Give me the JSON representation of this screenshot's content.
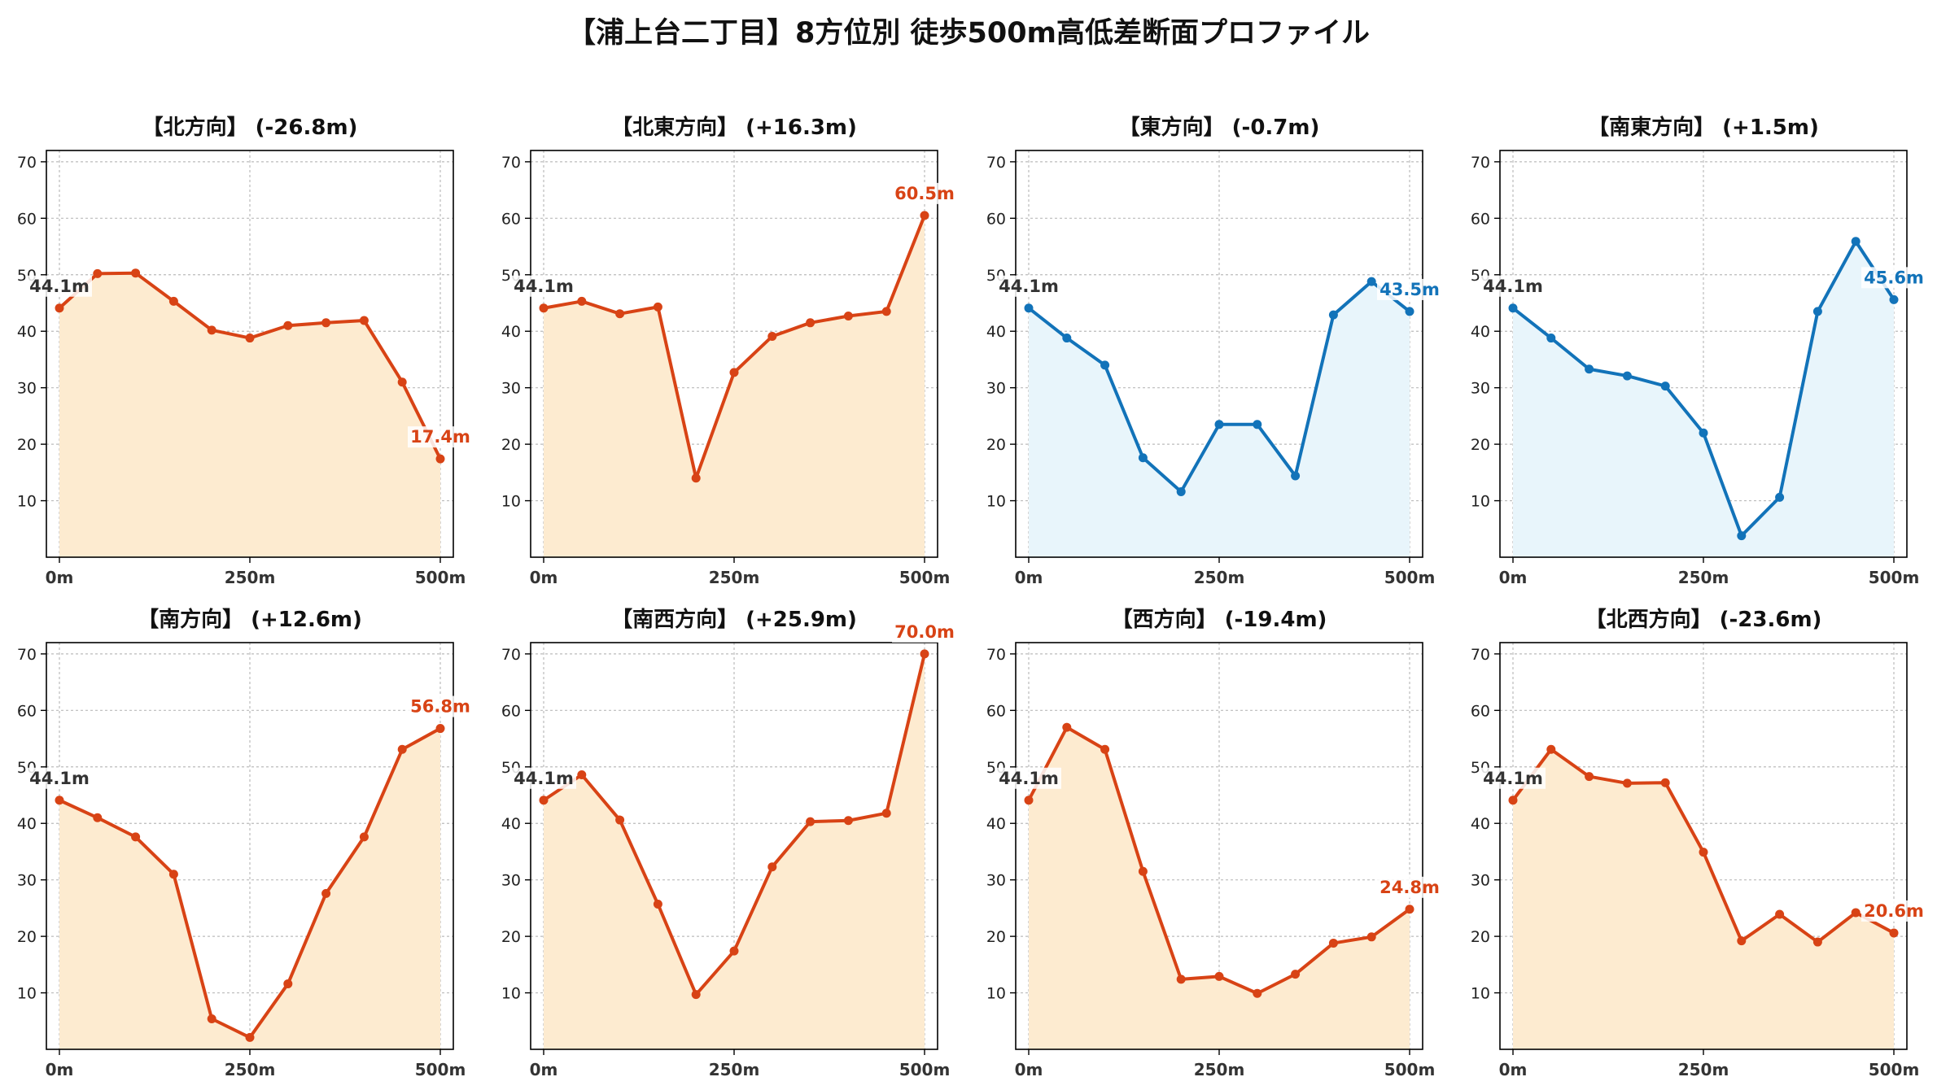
{
  "title": "【浦上台二丁目】8方位別 徒歩500m高低差断面プロファイル",
  "chart_data": [
    {
      "type": "line",
      "title": "【北方向】 (-26.8m)",
      "x": [
        0,
        50,
        100,
        150,
        200,
        250,
        300,
        350,
        400,
        450,
        500
      ],
      "values": [
        44.1,
        50.2,
        50.3,
        45.3,
        40.2,
        38.8,
        41.0,
        41.5,
        41.9,
        31.0,
        17.4
      ],
      "start_label": "44.1m",
      "end_label": "17.4m",
      "trend": "down",
      "xticks": [
        "0m",
        "250m",
        "500m"
      ],
      "yticks": [
        10,
        20,
        30,
        40,
        50,
        60,
        70
      ],
      "ylim": [
        0,
        72
      ],
      "grid": true
    },
    {
      "type": "line",
      "title": "【北東方向】 (+16.3m)",
      "x": [
        0,
        50,
        100,
        150,
        200,
        250,
        300,
        350,
        400,
        450,
        500
      ],
      "values": [
        44.1,
        45.3,
        43.1,
        44.3,
        14.0,
        32.7,
        39.1,
        41.5,
        42.7,
        43.5,
        60.5
      ],
      "start_label": "44.1m",
      "end_label": "60.5m",
      "trend": "up",
      "xticks": [
        "0m",
        "250m",
        "500m"
      ],
      "yticks": [
        10,
        20,
        30,
        40,
        50,
        60,
        70
      ],
      "ylim": [
        0,
        72
      ],
      "grid": true
    },
    {
      "type": "line",
      "title": "【東方向】 (-0.7m)",
      "x": [
        0,
        50,
        100,
        150,
        200,
        250,
        300,
        350,
        400,
        450,
        500
      ],
      "values": [
        44.1,
        38.8,
        34.0,
        17.6,
        11.6,
        23.5,
        23.5,
        14.4,
        42.9,
        48.8,
        43.5
      ],
      "start_label": "44.1m",
      "end_label": "43.5m",
      "trend": "flat",
      "xticks": [
        "0m",
        "250m",
        "500m"
      ],
      "yticks": [
        10,
        20,
        30,
        40,
        50,
        60,
        70
      ],
      "ylim": [
        0,
        72
      ],
      "grid": true
    },
    {
      "type": "line",
      "title": "【南東方向】 (+1.5m)",
      "x": [
        0,
        50,
        100,
        150,
        200,
        250,
        300,
        350,
        400,
        450,
        500
      ],
      "values": [
        44.1,
        38.8,
        33.3,
        32.1,
        30.3,
        22.0,
        3.8,
        10.6,
        43.5,
        55.9,
        45.6
      ],
      "start_label": "44.1m",
      "end_label": "45.6m",
      "trend": "flat",
      "xticks": [
        "0m",
        "250m",
        "500m"
      ],
      "yticks": [
        10,
        20,
        30,
        40,
        50,
        60,
        70
      ],
      "ylim": [
        0,
        72
      ],
      "grid": true
    },
    {
      "type": "line",
      "title": "【南方向】 (+12.6m)",
      "x": [
        0,
        50,
        100,
        150,
        200,
        250,
        300,
        350,
        400,
        450,
        500
      ],
      "values": [
        44.1,
        41.0,
        37.6,
        31.0,
        5.4,
        2.1,
        11.6,
        27.6,
        37.6,
        53.1,
        56.8
      ],
      "start_label": "44.1m",
      "end_label": "56.8m",
      "trend": "up",
      "xticks": [
        "0m",
        "250m",
        "500m"
      ],
      "yticks": [
        10,
        20,
        30,
        40,
        50,
        60,
        70
      ],
      "ylim": [
        0,
        72
      ],
      "grid": true
    },
    {
      "type": "line",
      "title": "【南西方向】 (+25.9m)",
      "x": [
        0,
        50,
        100,
        150,
        200,
        250,
        300,
        350,
        400,
        450,
        500
      ],
      "values": [
        44.1,
        48.6,
        40.6,
        25.7,
        9.7,
        17.4,
        32.3,
        40.3,
        40.5,
        41.8,
        70.0
      ],
      "start_label": "44.1m",
      "end_label": "70.0m",
      "trend": "up",
      "xticks": [
        "0m",
        "250m",
        "500m"
      ],
      "yticks": [
        10,
        20,
        30,
        40,
        50,
        60,
        70
      ],
      "ylim": [
        0,
        72
      ],
      "grid": true
    },
    {
      "type": "line",
      "title": "【西方向】 (-19.4m)",
      "x": [
        0,
        50,
        100,
        150,
        200,
        250,
        300,
        350,
        400,
        450,
        500
      ],
      "values": [
        44.1,
        57.0,
        53.1,
        31.5,
        12.4,
        12.9,
        9.9,
        13.3,
        18.8,
        19.9,
        24.8
      ],
      "start_label": "44.1m",
      "end_label": "24.8m",
      "trend": "down",
      "xticks": [
        "0m",
        "250m",
        "500m"
      ],
      "yticks": [
        10,
        20,
        30,
        40,
        50,
        60,
        70
      ],
      "ylim": [
        0,
        72
      ],
      "grid": true
    },
    {
      "type": "line",
      "title": "【北西方向】 (-23.6m)",
      "x": [
        0,
        50,
        100,
        150,
        200,
        250,
        300,
        350,
        400,
        450,
        500
      ],
      "values": [
        44.1,
        53.1,
        48.3,
        47.1,
        47.2,
        34.9,
        19.2,
        23.9,
        19.0,
        24.2,
        20.6
      ],
      "start_label": "44.1m",
      "end_label": "20.6m",
      "trend": "down",
      "xticks": [
        "0m",
        "250m",
        "500m"
      ],
      "yticks": [
        10,
        20,
        30,
        40,
        50,
        60,
        70
      ],
      "ylim": [
        0,
        72
      ],
      "grid": true
    }
  ],
  "colors": {
    "orange_line": "#d84315",
    "orange_fill": "#fdebd0",
    "orange_label": "#d84315",
    "blue_line": "#1273b9",
    "blue_fill": "#e8f5fb",
    "blue_label": "#1273b9",
    "start_label": "#333333",
    "grid": "#bbbbbb",
    "axis": "#000000"
  }
}
